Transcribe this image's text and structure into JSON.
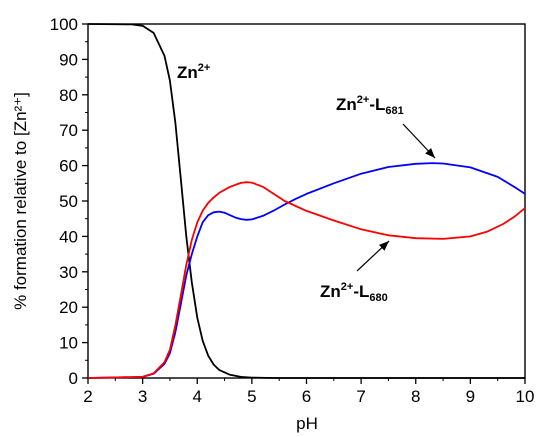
{
  "chart_data": {
    "type": "line",
    "title": "",
    "xlabel": "pH",
    "ylabel": "% formation relative to [Zn²⁺]",
    "xlim": [
      2,
      10
    ],
    "ylim": [
      0,
      100
    ],
    "xticks": [
      2,
      3,
      4,
      5,
      6,
      7,
      8,
      9,
      10
    ],
    "yticks": [
      0,
      10,
      20,
      30,
      40,
      50,
      60,
      70,
      80,
      90,
      100
    ],
    "grid": false,
    "legend": "none",
    "series": [
      {
        "color": "#000000",
        "points": [
          [
            2.0,
            100
          ],
          [
            2.8,
            99.9
          ],
          [
            3.0,
            99.5
          ],
          [
            3.2,
            97.5
          ],
          [
            3.4,
            91
          ],
          [
            3.5,
            84
          ],
          [
            3.6,
            72
          ],
          [
            3.7,
            56
          ],
          [
            3.8,
            40
          ],
          [
            3.9,
            27
          ],
          [
            4.0,
            17
          ],
          [
            4.1,
            10.5
          ],
          [
            4.2,
            6.3
          ],
          [
            4.3,
            3.8
          ],
          [
            4.4,
            2.3
          ],
          [
            4.6,
            0.9
          ],
          [
            4.8,
            0.3
          ],
          [
            5.0,
            0.1
          ],
          [
            5.4,
            0
          ],
          [
            10.0,
            0
          ]
        ]
      },
      {
        "color": "#0000ff",
        "points": [
          [
            2.0,
            0
          ],
          [
            3.0,
            0.3
          ],
          [
            3.2,
            1.2
          ],
          [
            3.4,
            4
          ],
          [
            3.5,
            7
          ],
          [
            3.6,
            13
          ],
          [
            3.7,
            21
          ],
          [
            3.8,
            29
          ],
          [
            3.9,
            35
          ],
          [
            4.0,
            40
          ],
          [
            4.1,
            44
          ],
          [
            4.2,
            46
          ],
          [
            4.3,
            46.8
          ],
          [
            4.4,
            47
          ],
          [
            4.5,
            46.7
          ],
          [
            4.6,
            46
          ],
          [
            4.7,
            45.3
          ],
          [
            4.8,
            44.9
          ],
          [
            4.9,
            44.7
          ],
          [
            5.0,
            44.8
          ],
          [
            5.2,
            45.8
          ],
          [
            5.4,
            47.3
          ],
          [
            5.6,
            49
          ],
          [
            5.8,
            50.6
          ],
          [
            6.0,
            52
          ],
          [
            6.5,
            55
          ],
          [
            7.0,
            57.7
          ],
          [
            7.5,
            59.6
          ],
          [
            8.0,
            60.5
          ],
          [
            8.3,
            60.7
          ],
          [
            8.5,
            60.6
          ],
          [
            9.0,
            59.5
          ],
          [
            9.5,
            56.8
          ],
          [
            9.8,
            54
          ],
          [
            10.0,
            52
          ]
        ]
      },
      {
        "color": "#ff0000",
        "points": [
          [
            2.0,
            0
          ],
          [
            3.0,
            0.3
          ],
          [
            3.2,
            1.3
          ],
          [
            3.4,
            4.5
          ],
          [
            3.5,
            8
          ],
          [
            3.6,
            15
          ],
          [
            3.7,
            23.5
          ],
          [
            3.8,
            32
          ],
          [
            3.9,
            39
          ],
          [
            4.0,
            44
          ],
          [
            4.1,
            47.3
          ],
          [
            4.2,
            49.5
          ],
          [
            4.3,
            51
          ],
          [
            4.4,
            52.3
          ],
          [
            4.6,
            54
          ],
          [
            4.8,
            55.1
          ],
          [
            4.9,
            55.3
          ],
          [
            5.0,
            55.2
          ],
          [
            5.2,
            54
          ],
          [
            5.4,
            52
          ],
          [
            5.6,
            50
          ],
          [
            6.0,
            47.2
          ],
          [
            6.5,
            44.5
          ],
          [
            7.0,
            42
          ],
          [
            7.5,
            40.3
          ],
          [
            8.0,
            39.5
          ],
          [
            8.5,
            39.3
          ],
          [
            9.0,
            40
          ],
          [
            9.3,
            41.3
          ],
          [
            9.6,
            43.5
          ],
          [
            9.8,
            45.5
          ],
          [
            10.0,
            48
          ]
        ]
      }
    ],
    "annotations": [
      {
        "name": "zn",
        "base": "Zn",
        "sup": "2+",
        "rest": "",
        "sub": ""
      },
      {
        "name": "l681",
        "base": "Zn",
        "sup": "2+",
        "rest": "-L",
        "sub": "681"
      },
      {
        "name": "l680",
        "base": "Zn",
        "sup": "2+",
        "rest": "-L",
        "sub": "680"
      }
    ]
  }
}
